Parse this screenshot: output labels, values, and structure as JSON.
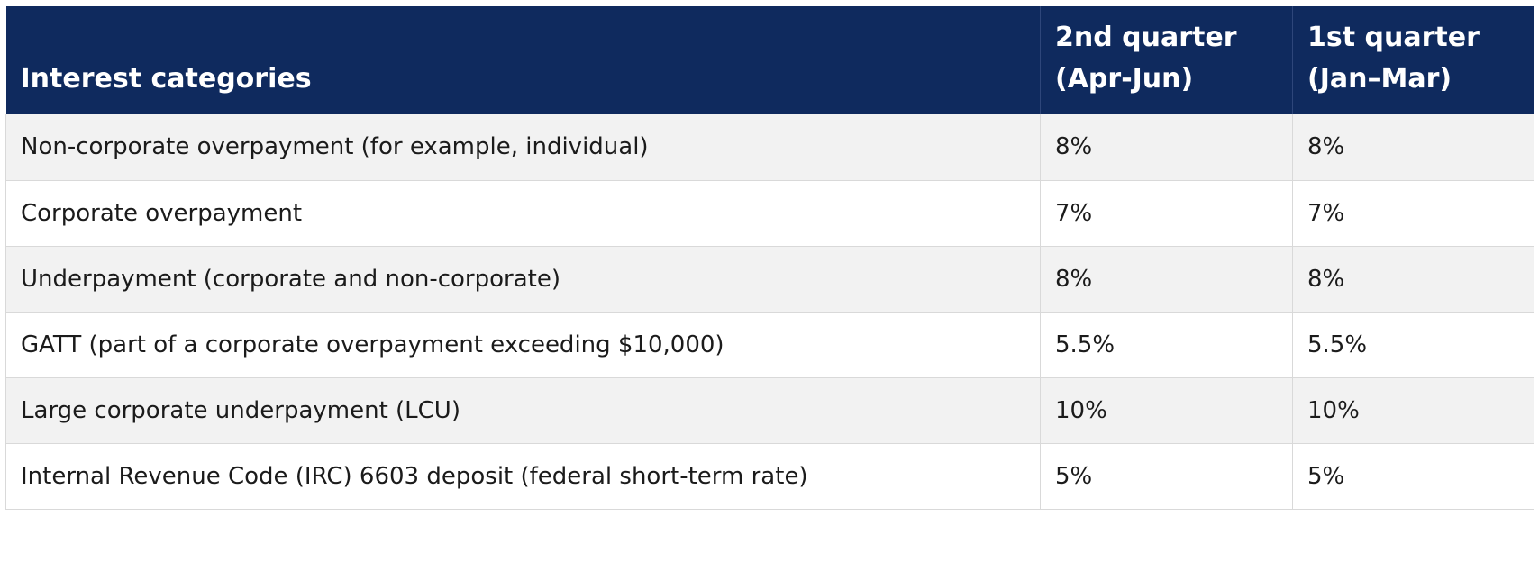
{
  "table": {
    "headers": {
      "category": "Interest categories",
      "q2_line1": "2nd quarter",
      "q2_line2": "(Apr-Jun)",
      "q1_line1": "1st quarter",
      "q1_line2": "(Jan–Mar)"
    },
    "rows": [
      {
        "category": "Non-corporate overpayment (for example, individual)",
        "q2": "8%",
        "q1": "8%"
      },
      {
        "category": "Corporate overpayment",
        "q2": "7%",
        "q1": "7%"
      },
      {
        "category": "Underpayment (corporate and non-corporate)",
        "q2": "8%",
        "q1": "8%"
      },
      {
        "category": "GATT (part of a corporate overpayment exceeding $10,000)",
        "q2": "5.5%",
        "q1": "5.5%"
      },
      {
        "category": "Large corporate underpayment (LCU)",
        "q2": "10%",
        "q1": "10%"
      },
      {
        "category": "Internal Revenue Code (IRC) 6603 deposit (federal short-term rate)",
        "q2": "5%",
        "q1": "5%"
      }
    ]
  }
}
